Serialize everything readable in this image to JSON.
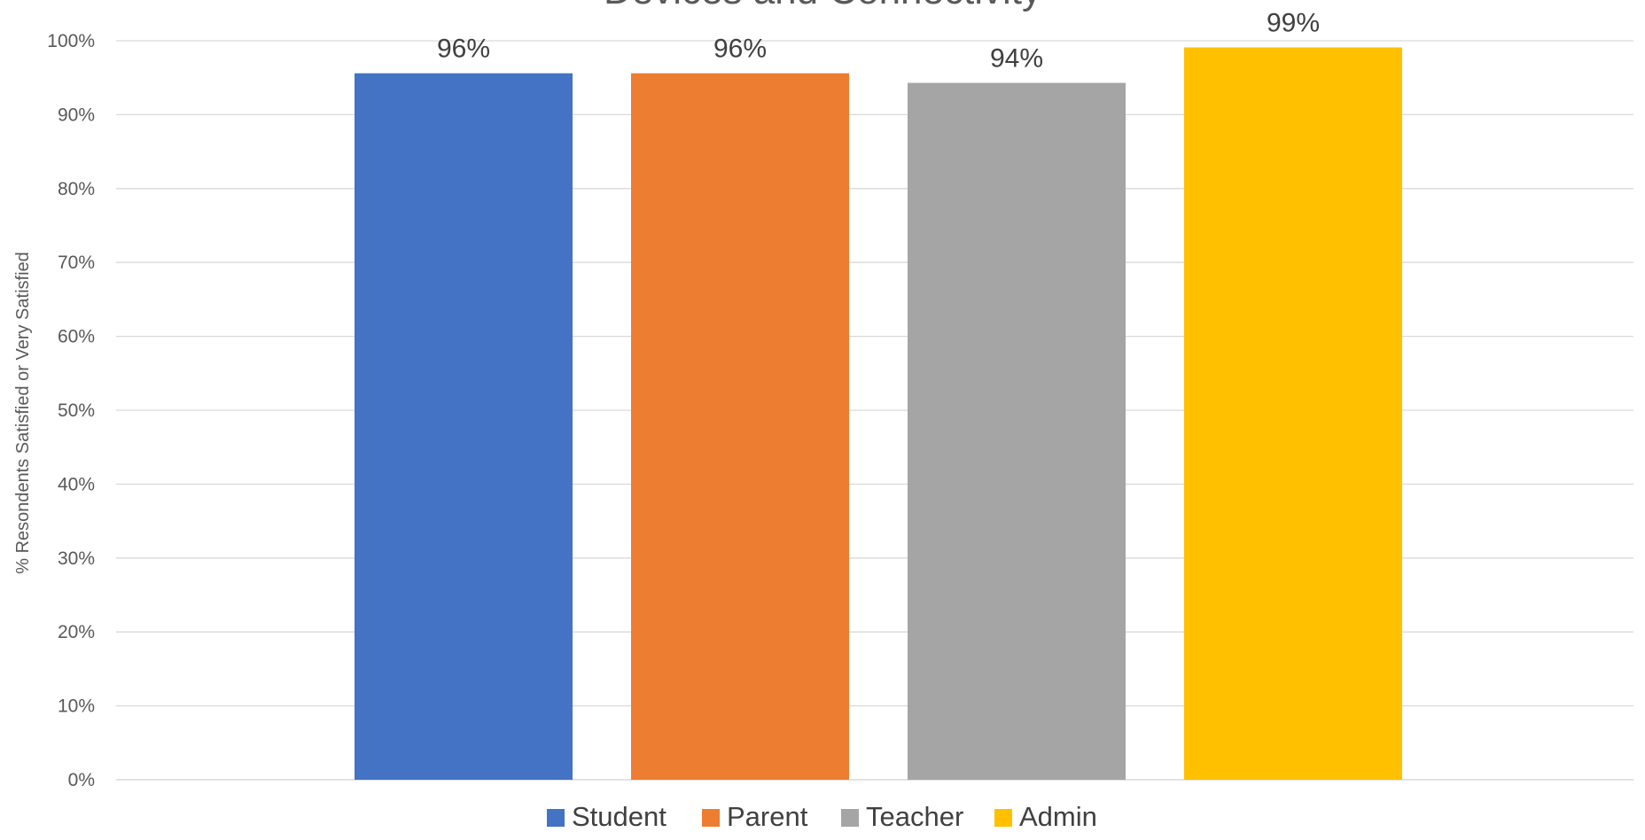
{
  "chart_data": {
    "type": "bar",
    "title": "Devices and Connectivity",
    "ylabel": "% Resondents Satisfied or Very Satisfied",
    "xlabel": "",
    "ylim": [
      0,
      100
    ],
    "yticks": [
      0,
      10,
      20,
      30,
      40,
      50,
      60,
      70,
      80,
      90,
      100
    ],
    "ytick_labels": [
      "0%",
      "10%",
      "20%",
      "30%",
      "40%",
      "50%",
      "60%",
      "70%",
      "80%",
      "90%",
      "100%"
    ],
    "grid": true,
    "legend_position": "bottom",
    "series": [
      {
        "name": "Student",
        "value": 95.6,
        "label": "96%",
        "color": "#4472c4"
      },
      {
        "name": "Parent",
        "value": 95.6,
        "label": "96%",
        "color": "#ed7d31"
      },
      {
        "name": "Teacher",
        "value": 94.3,
        "label": "94%",
        "color": "#a5a5a5"
      },
      {
        "name": "Admin",
        "value": 99.1,
        "label": "99%",
        "color": "#ffc000"
      }
    ]
  }
}
